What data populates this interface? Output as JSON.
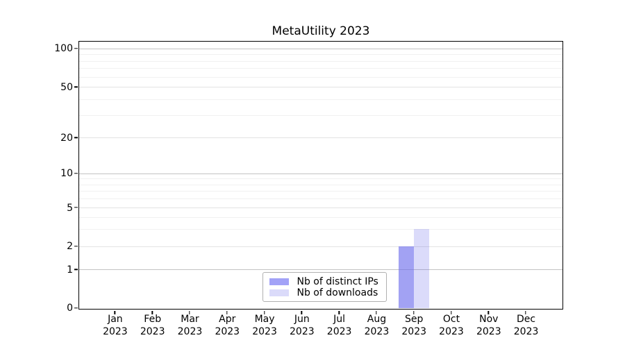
{
  "chart_data": {
    "type": "bar",
    "title": "MetaUtility 2023",
    "categories": [
      "Jan",
      "Feb",
      "Mar",
      "Apr",
      "May",
      "Jun",
      "Jul",
      "Aug",
      "Sep",
      "Oct",
      "Nov",
      "Dec"
    ],
    "category_year": "2023",
    "series": [
      {
        "name": "Nb of distinct IPs",
        "color": "#a2a2f7",
        "fill": "rgba(105,105,235,0.62)",
        "values": [
          0,
          0,
          0,
          0,
          0,
          0,
          0,
          0,
          2,
          0,
          0,
          0
        ]
      },
      {
        "name": "Nb of downloads",
        "color": "#dbdbfa",
        "fill": "rgba(105,105,235,0.24)",
        "values": [
          0,
          0,
          0,
          0,
          0,
          0,
          0,
          0,
          3,
          0,
          0,
          0
        ]
      }
    ],
    "xlabel": "",
    "ylabel": "",
    "y_scale": "log-with-zero (symlog-like)",
    "y_ticks": [
      0,
      1,
      2,
      5,
      10,
      20,
      50,
      100
    ],
    "y_minor_ticks": [
      3,
      4,
      6,
      7,
      8,
      9,
      30,
      40,
      60,
      70,
      80,
      90
    ],
    "ylim": [
      0,
      115
    ],
    "grid": "horizontal, major and minor",
    "legend_position": "inside bottom-center"
  }
}
